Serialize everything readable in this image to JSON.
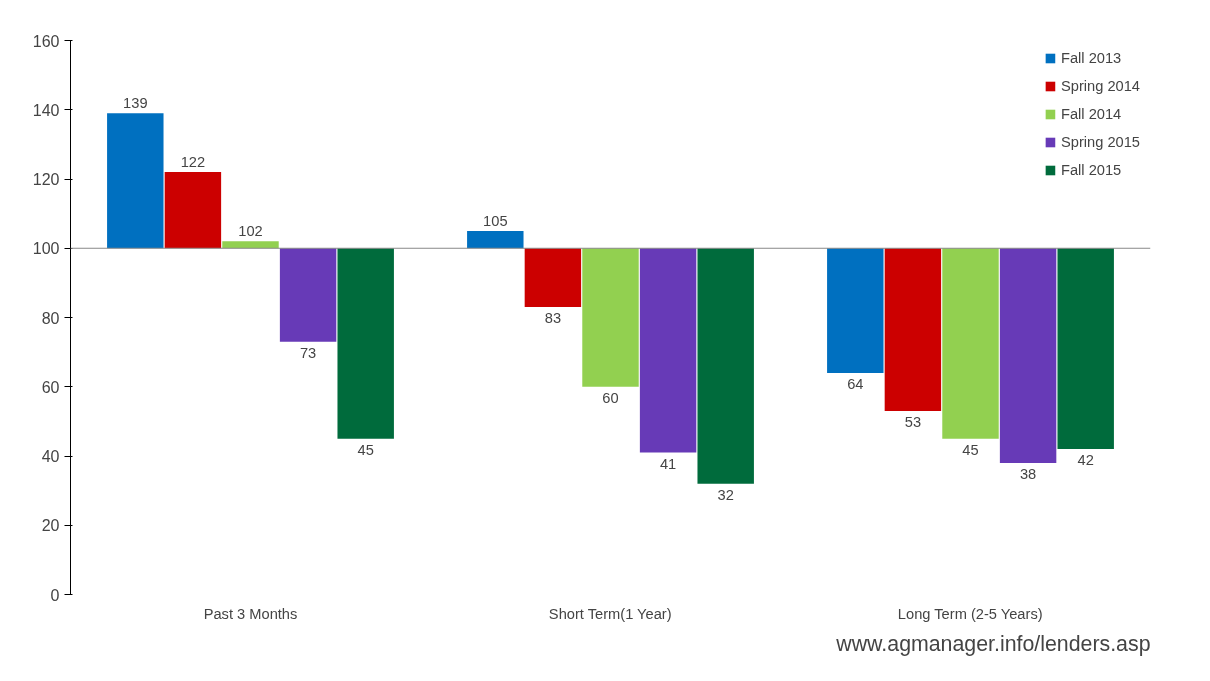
{
  "chart_data": {
    "type": "bar",
    "categories": [
      "Past 3 Months",
      "Short Term(1 Year)",
      "Long Term (2-5 Years)"
    ],
    "series": [
      {
        "name": "Fall 2013",
        "color": "#0070c0",
        "base": [
          100,
          100,
          100
        ],
        "values": [
          39,
          5,
          -36
        ],
        "value_labels": [
          "139",
          "105",
          "64"
        ]
      },
      {
        "name": "Spring 2014",
        "color": "#cc0000",
        "base": [
          100,
          100,
          100
        ],
        "values": [
          22,
          -17,
          -47
        ],
        "value_labels": [
          "122",
          "83",
          "53"
        ]
      },
      {
        "name": "Fall 2014",
        "color": "#92d050",
        "base": [
          100,
          100,
          100
        ],
        "values": [
          2,
          -40,
          -55
        ],
        "value_labels": [
          "102",
          "60",
          "45"
        ]
      },
      {
        "name": "Spring 2015",
        "color": "#673ab7",
        "base": [
          100,
          100,
          100
        ],
        "values": [
          -27,
          -59,
          -62
        ],
        "value_labels": [
          "73",
          "41",
          "38"
        ]
      },
      {
        "name": "Fall 2015",
        "color": "#006b3c",
        "base": [
          100,
          100,
          100
        ],
        "values": [
          -55,
          -68,
          -58
        ],
        "value_labels": [
          "45",
          "32",
          "42"
        ]
      }
    ],
    "ylim": [
      0,
      160
    ],
    "yticks": [
      0,
      20,
      40,
      60,
      80,
      100,
      120,
      140,
      160
    ],
    "ref_lines": [
      {
        "axis": "y",
        "value": 100,
        "color": "#888888"
      }
    ],
    "legend": "top right",
    "annotations": [
      "www.agmanager.info/lenders.asp"
    ]
  }
}
